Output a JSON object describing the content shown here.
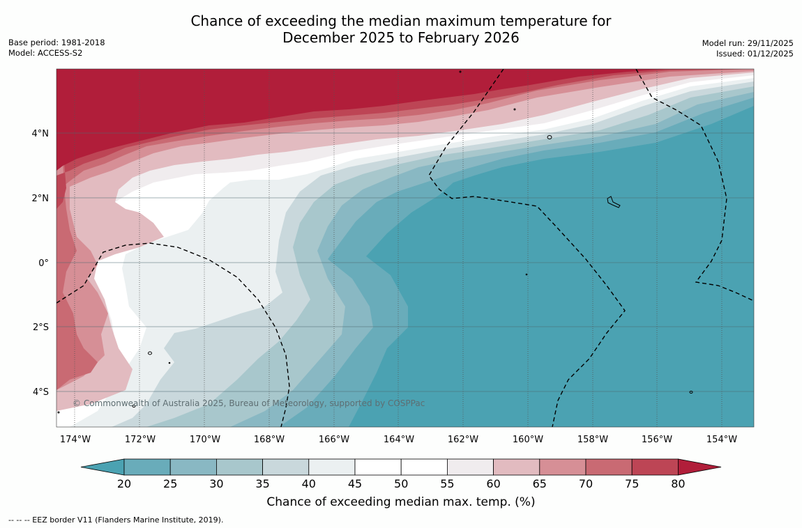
{
  "header": {
    "title_line1": "Chance of exceeding the median maximum temperature for",
    "title_line2": "December 2025 to February 2026",
    "base_period": "Base period: 1981-2018",
    "model": "Model: ACCESS-S2",
    "model_run": "Model run: 29/11/2025",
    "issued": "Issued: 01/12/2025"
  },
  "map": {
    "lon_labels": [
      "174°W",
      "172°W",
      "170°W",
      "168°W",
      "166°W",
      "164°W",
      "162°W",
      "160°W",
      "158°W",
      "156°W",
      "154°W"
    ],
    "lat_labels": [
      "4°N",
      "2°N",
      "0°",
      "2°S",
      "4°S"
    ],
    "copyright": "© Commonwealth of Australia 2025, Bureau of Meteorology, supported by COSPPac"
  },
  "colorbar": {
    "ticks": [
      "20",
      "25",
      "30",
      "35",
      "40",
      "45",
      "50",
      "55",
      "60",
      "65",
      "70",
      "75",
      "80"
    ],
    "colors": [
      "#69acba",
      "#89b8c3",
      "#a8c7cc",
      "#c9d8dc",
      "#ebf0f1",
      "#ffffff",
      "#ffffff",
      "#f0ecee",
      "#e2bbc0",
      "#d68f96",
      "#c96a73",
      "#bd4555"
    ],
    "under_color": "#4ba2b2",
    "over_color": "#b11e3a",
    "label": "Chance of exceeding median max. temp. (%)"
  },
  "footer": {
    "legend": "--  --  -- EEZ border V11 (Flanders Marine Institute, 2019)."
  }
}
